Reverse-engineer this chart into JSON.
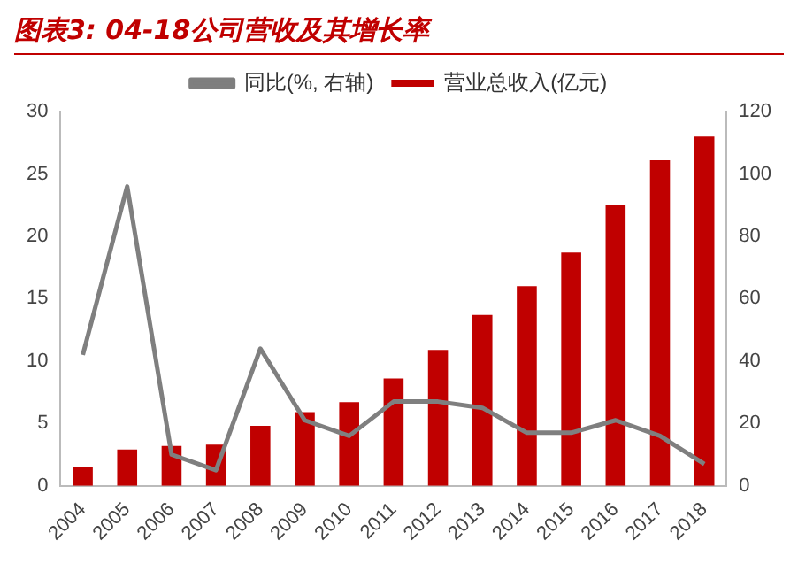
{
  "chart_data": {
    "type": "bar",
    "title": "图表3: 04-18公司营收及其增长率",
    "categories": [
      "2004",
      "2005",
      "2006",
      "2007",
      "2008",
      "2009",
      "2010",
      "2011",
      "2012",
      "2013",
      "2014",
      "2015",
      "2016",
      "2017",
      "2018"
    ],
    "series": [
      {
        "name": "营业总收入(亿元)",
        "color": "#c00000",
        "values": [
          1.5,
          2.9,
          3.2,
          3.3,
          4.8,
          5.9,
          6.7,
          8.6,
          10.9,
          13.7,
          16.0,
          18.7,
          22.5,
          26.1,
          28.0
        ]
      },
      {
        "name": "同比(%, 右轴)",
        "type": "line",
        "axis": "y2",
        "color": "#7f7f7f",
        "values": [
          42,
          96,
          10,
          5,
          44,
          21,
          16,
          27,
          27,
          25,
          17,
          17,
          21,
          16,
          7
        ]
      }
    ],
    "ylim": [
      0,
      30
    ],
    "yticks": [
      0,
      5,
      10,
      15,
      20,
      25,
      30
    ],
    "y2lim": [
      0,
      120
    ],
    "y2ticks": [
      0,
      20,
      40,
      60,
      80,
      100,
      120
    ],
    "legend": "top",
    "grid": false,
    "marker": "none"
  }
}
